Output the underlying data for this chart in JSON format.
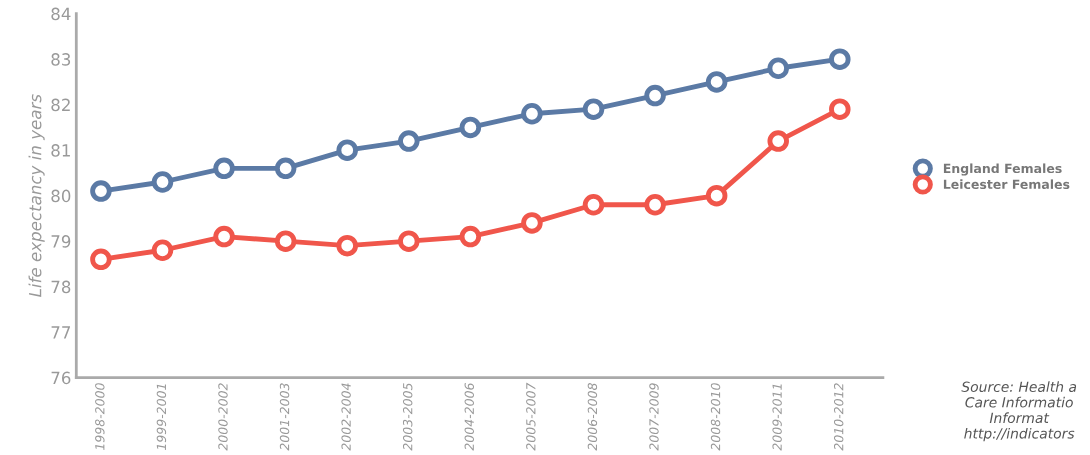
{
  "chart_data": {
    "type": "line",
    "ylabel": "Life expectancy in years",
    "categories": [
      "1998-2000",
      "1999-2001",
      "2000-2002",
      "2001-2003",
      "2002-2004",
      "2003-2005",
      "2004-2006",
      "2005-2007",
      "2006-2008",
      "2007-2009",
      "2008-2010",
      "2009-2011",
      "2010-2012"
    ],
    "series": [
      {
        "name": "England Females",
        "color": "#5b7aa5",
        "values": [
          80.1,
          80.3,
          80.6,
          80.6,
          81.0,
          81.2,
          81.5,
          81.8,
          81.9,
          82.2,
          82.5,
          82.8,
          83.0
        ]
      },
      {
        "name": "Leicester Females",
        "color": "#f0564b",
        "values": [
          78.6,
          78.8,
          79.1,
          79.0,
          78.9,
          79.0,
          79.1,
          79.4,
          79.8,
          79.8,
          80.0,
          81.2,
          81.9
        ]
      }
    ],
    "ylim": [
      76,
      84
    ],
    "yticks": [
      76,
      77,
      78,
      79,
      80,
      81,
      82,
      83,
      84
    ],
    "marker": "circle",
    "grid": false,
    "legend": "right",
    "annotations": [
      "Source: Health a\nCare Informatio\nInformat\nhttp://indicators"
    ]
  }
}
